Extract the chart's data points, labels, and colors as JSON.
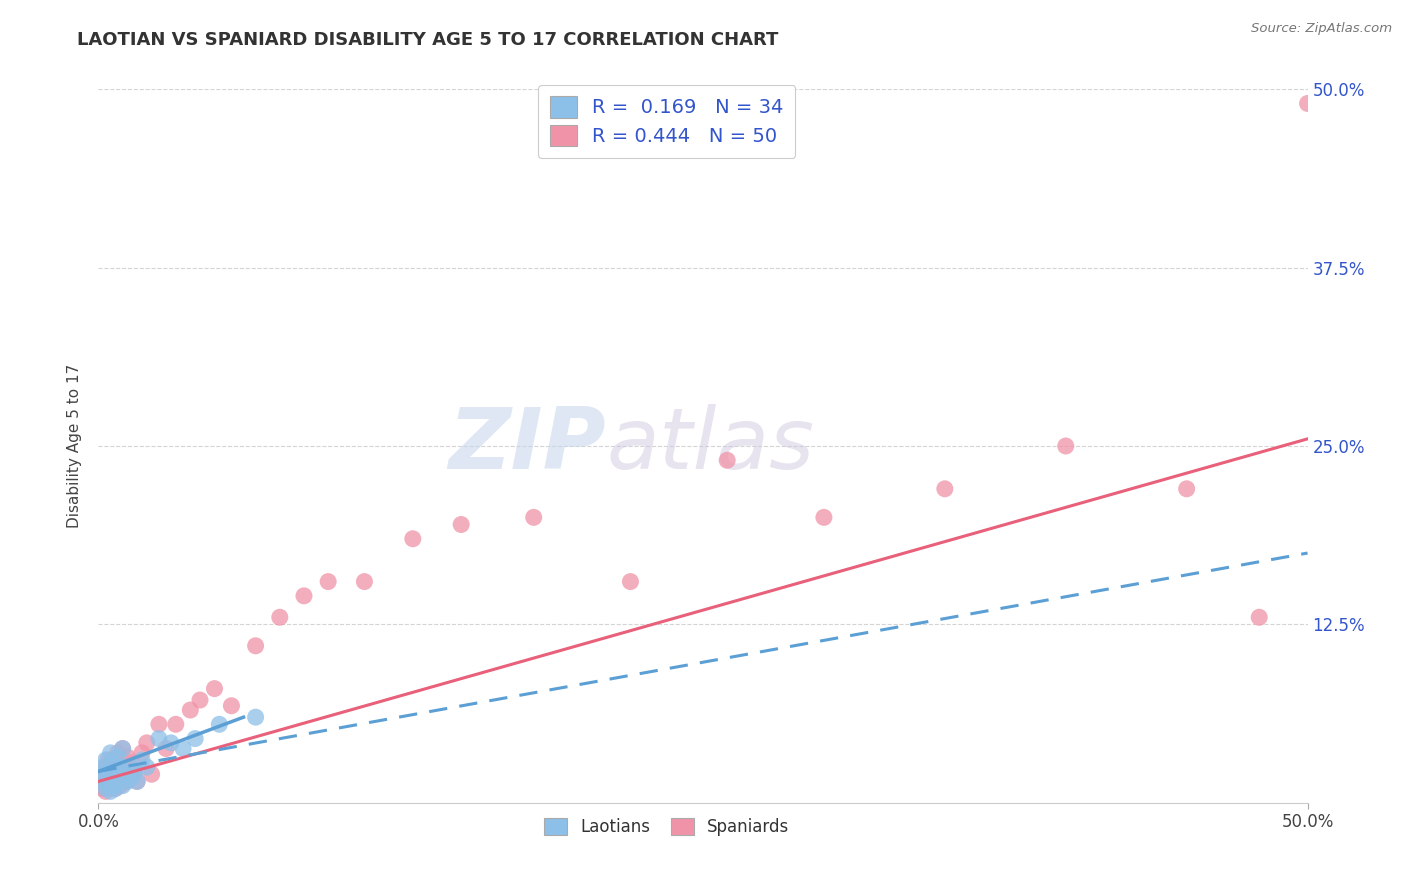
{
  "title": "LAOTIAN VS SPANIARD DISABILITY AGE 5 TO 17 CORRELATION CHART",
  "source_text": "Source: ZipAtlas.com",
  "ylabel": "Disability Age 5 to 17",
  "xlim": [
    0.0,
    0.5
  ],
  "ylim": [
    0.0,
    0.5
  ],
  "ytick_positions": [
    0.0,
    0.125,
    0.25,
    0.375,
    0.5
  ],
  "right_ytick_labels": [
    "12.5%",
    "25.0%",
    "37.5%",
    "50.0%"
  ],
  "right_ytick_positions": [
    0.125,
    0.25,
    0.375,
    0.5
  ],
  "background_color": "#ffffff",
  "grid_color": "#d0d0d0",
  "laotian_color": "#8dc0e8",
  "spaniard_color": "#f093a8",
  "laotian_line_color": "#5b9fd4",
  "spaniard_line_color": "#e8607a",
  "laotian_R": 0.169,
  "laotian_N": 34,
  "spaniard_R": 0.444,
  "spaniard_N": 50,
  "legend_label_laotian": "Laotians",
  "legend_label_spaniard": "Spaniards",
  "laotian_scatter_x": [
    0.001,
    0.002,
    0.002,
    0.003,
    0.003,
    0.004,
    0.004,
    0.005,
    0.005,
    0.005,
    0.006,
    0.006,
    0.007,
    0.007,
    0.008,
    0.008,
    0.009,
    0.009,
    0.01,
    0.01,
    0.011,
    0.012,
    0.013,
    0.014,
    0.015,
    0.016,
    0.018,
    0.02,
    0.025,
    0.03,
    0.035,
    0.04,
    0.05,
    0.065
  ],
  "laotian_scatter_y": [
    0.02,
    0.015,
    0.025,
    0.01,
    0.03,
    0.012,
    0.022,
    0.008,
    0.018,
    0.035,
    0.012,
    0.028,
    0.01,
    0.022,
    0.015,
    0.032,
    0.018,
    0.025,
    0.012,
    0.038,
    0.02,
    0.015,
    0.025,
    0.018,
    0.022,
    0.015,
    0.03,
    0.025,
    0.045,
    0.042,
    0.038,
    0.045,
    0.055,
    0.06
  ],
  "spaniard_scatter_x": [
    0.001,
    0.002,
    0.002,
    0.003,
    0.003,
    0.004,
    0.004,
    0.005,
    0.005,
    0.006,
    0.006,
    0.007,
    0.007,
    0.008,
    0.008,
    0.009,
    0.01,
    0.01,
    0.011,
    0.012,
    0.013,
    0.014,
    0.015,
    0.016,
    0.018,
    0.02,
    0.022,
    0.025,
    0.028,
    0.032,
    0.038,
    0.042,
    0.048,
    0.055,
    0.065,
    0.075,
    0.085,
    0.095,
    0.11,
    0.13,
    0.15,
    0.18,
    0.22,
    0.26,
    0.3,
    0.35,
    0.4,
    0.45,
    0.48,
    0.5
  ],
  "spaniard_scatter_y": [
    0.015,
    0.02,
    0.01,
    0.025,
    0.008,
    0.018,
    0.03,
    0.012,
    0.022,
    0.015,
    0.028,
    0.01,
    0.022,
    0.018,
    0.035,
    0.012,
    0.025,
    0.038,
    0.015,
    0.032,
    0.02,
    0.028,
    0.022,
    0.015,
    0.035,
    0.042,
    0.02,
    0.055,
    0.038,
    0.055,
    0.065,
    0.072,
    0.08,
    0.068,
    0.11,
    0.13,
    0.145,
    0.155,
    0.155,
    0.185,
    0.195,
    0.2,
    0.155,
    0.24,
    0.2,
    0.22,
    0.25,
    0.22,
    0.13,
    0.49
  ],
  "laotian_line_x": [
    0.0,
    0.5
  ],
  "laotian_line_y": [
    0.022,
    0.175
  ],
  "spaniard_line_x": [
    0.0,
    0.5
  ],
  "spaniard_line_y": [
    0.015,
    0.255
  ]
}
